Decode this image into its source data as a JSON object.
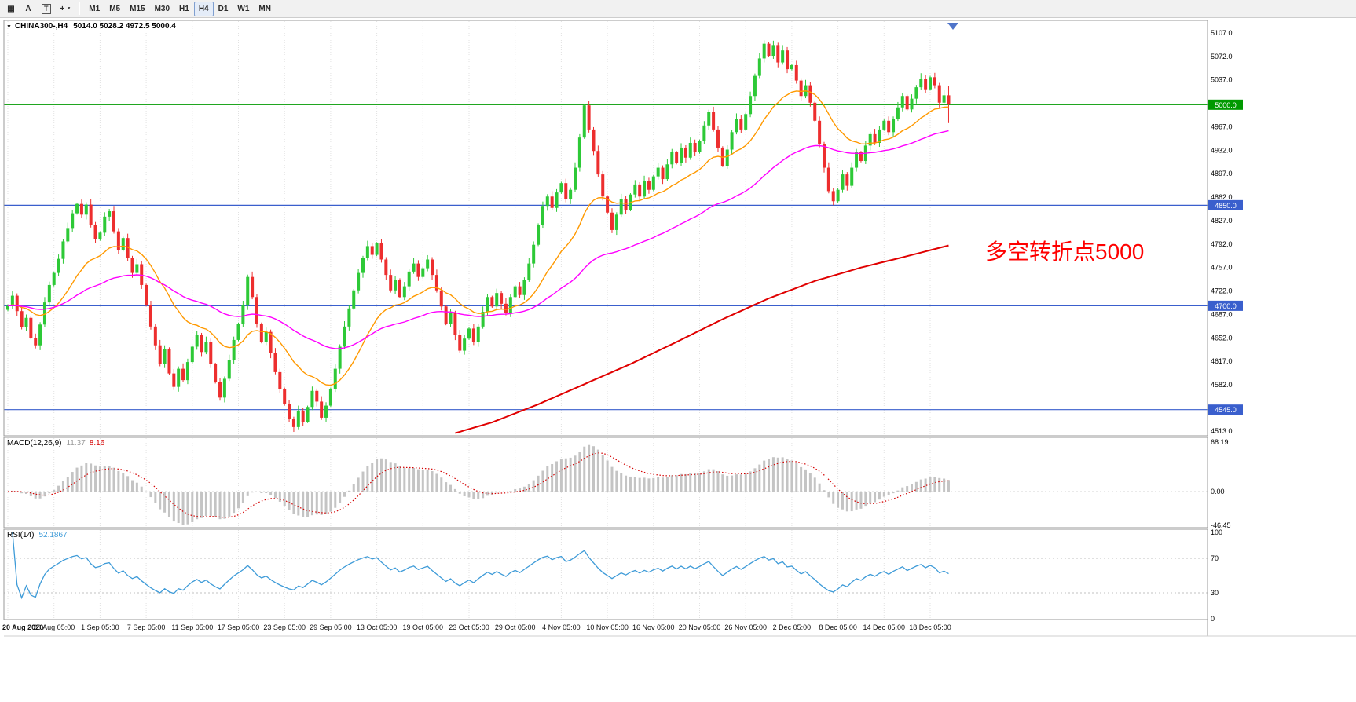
{
  "toolbar": {
    "tools": [
      {
        "name": "chart-grid-icon",
        "glyph": "▦"
      },
      {
        "name": "text-label-icon",
        "glyph": "A"
      },
      {
        "name": "text-box-icon",
        "glyph": "T",
        "boxed": true
      },
      {
        "name": "crosshair-tool-icon",
        "glyph": "+",
        "caret": "▼"
      }
    ],
    "timeframes": [
      {
        "label": "M1",
        "active": false
      },
      {
        "label": "M5",
        "active": false
      },
      {
        "label": "M15",
        "active": false
      },
      {
        "label": "M30",
        "active": false
      },
      {
        "label": "H1",
        "active": false
      },
      {
        "label": "H4",
        "active": true
      },
      {
        "label": "D1",
        "active": false
      },
      {
        "label": "W1",
        "active": false
      },
      {
        "label": "MN",
        "active": false
      }
    ]
  },
  "chart_data": {
    "type": "candlestick",
    "title": "CHINA300-,H4",
    "ohlc_label": "5014.0 5028.2 4972.5 5000.4",
    "last_candle": {
      "open": 5014.0,
      "high": 5028.2,
      "low": 4972.5,
      "close": 5000.4
    },
    "up_color": "#2dc937",
    "down_color": "#ed2e2e",
    "price_axis": {
      "min": 4513.0,
      "max": 5107.0,
      "ticks": [
        5107.0,
        5072.0,
        5037.0,
        4967.0,
        4932.0,
        4897.0,
        4862.0,
        4827.0,
        4792.0,
        4757.0,
        4722.0,
        4687.0,
        4652.0,
        4617.0,
        4582.0,
        4513.0
      ]
    },
    "hlines": [
      {
        "price": 5000.0,
        "color": "#009900",
        "tag": "5000.0"
      },
      {
        "price": 4850.0,
        "color": "#3a5fcd",
        "tag": "4850.0"
      },
      {
        "price": 4700.0,
        "color": "#3a5fcd",
        "tag": "4700.0"
      },
      {
        "price": 4545.0,
        "color": "#3a5fcd",
        "tag": "4545.0"
      }
    ],
    "x_labels": [
      "20 Aug 2020",
      "26 Aug 05:00",
      "1 Sep 05:00",
      "7 Sep 05:00",
      "11 Sep 05:00",
      "17 Sep 05:00",
      "23 Sep 05:00",
      "29 Sep 05:00",
      "13 Oct 05:00",
      "19 Oct 05:00",
      "23 Oct 05:00",
      "29 Oct 05:00",
      "4 Nov 05:00",
      "10 Nov 05:00",
      "16 Nov 05:00",
      "20 Nov 05:00",
      "26 Nov 05:00",
      "2 Dec 05:00",
      "8 Dec 05:00",
      "14 Dec 05:00",
      "18 Dec 05:00"
    ],
    "candles_per_label": 10,
    "closes": [
      4700,
      4715,
      4692,
      4668,
      4682,
      4652,
      4641,
      4672,
      4705,
      4731,
      4749,
      4770,
      4796,
      4816,
      4838,
      4852,
      4836,
      4851,
      4820,
      4799,
      4809,
      4833,
      4841,
      4811,
      4783,
      4801,
      4771,
      4749,
      4762,
      4731,
      4701,
      4669,
      4641,
      4613,
      4636,
      4599,
      4579,
      4606,
      4589,
      4616,
      4639,
      4656,
      4631,
      4646,
      4613,
      4586,
      4563,
      4591,
      4619,
      4649,
      4673,
      4701,
      4743,
      4713,
      4673,
      4646,
      4661,
      4629,
      4601,
      4576,
      4553,
      4531,
      4519,
      4543,
      4527,
      4549,
      4573,
      4557,
      4533,
      4551,
      4576,
      4606,
      4639,
      4669,
      4696,
      4723,
      4749,
      4771,
      4789,
      4776,
      4793,
      4769,
      4746,
      4723,
      4739,
      4713,
      4729,
      4751,
      4763,
      4743,
      4756,
      4769,
      4746,
      4723,
      4699,
      4673,
      4689,
      4656,
      4633,
      4651,
      4666,
      4646,
      4669,
      4691,
      4713,
      4699,
      4719,
      4703,
      4689,
      4713,
      4729,
      4716,
      4739,
      4763,
      4791,
      4821,
      4849,
      4863,
      4846,
      4869,
      4883,
      4859,
      4873,
      4906,
      4951,
      4999,
      4963,
      4931,
      4896,
      4863,
      4839,
      4813,
      4836,
      4859,
      4843,
      4866,
      4881,
      4863,
      4886,
      4873,
      4893,
      4906,
      4889,
      4911,
      4929,
      4913,
      4936,
      4921,
      4943,
      4929,
      4946,
      4969,
      4989,
      4963,
      4936,
      4909,
      4933,
      4959,
      4979,
      4963,
      4986,
      5013,
      5043,
      5069,
      5091,
      5073,
      5089,
      5063,
      5081,
      5053,
      5059,
      5036,
      5013,
      5029,
      5003,
      4976,
      4941,
      4906,
      4871,
      4856,
      4873,
      4896,
      4879,
      4906,
      4929,
      4916,
      4939,
      4956,
      4943,
      4963,
      4976,
      4959,
      4979,
      4996,
      5013,
      4993,
      5009,
      5026,
      5039,
      5023,
      5041,
      5029,
      5003,
      5014,
      5000.4
    ],
    "moving_averages": [
      {
        "name": "ma-fast",
        "type": "ema",
        "period": 20,
        "color": "#ff9900"
      },
      {
        "name": "ma-medium",
        "type": "ema",
        "period": 60,
        "color": "#ff00ff"
      },
      {
        "name": "ma-slow",
        "type": "anchors",
        "color": "#e00000",
        "anchors": [
          [
            97,
            4510
          ],
          [
            105,
            4526
          ],
          [
            115,
            4553
          ],
          [
            125,
            4583
          ],
          [
            135,
            4613
          ],
          [
            145,
            4646
          ],
          [
            155,
            4680
          ],
          [
            165,
            4711
          ],
          [
            175,
            4737
          ],
          [
            185,
            4757
          ],
          [
            195,
            4774
          ],
          [
            204,
            4790
          ]
        ]
      }
    ],
    "annotation": {
      "text": "多空转折点5000",
      "color": "#ff0000"
    },
    "macd": {
      "name": "MACD(12,26,9)",
      "value_hist": "11.37",
      "value_signal": "8.16",
      "fast": 12,
      "slow": 26,
      "signal": 9,
      "axis_ticks": [
        68.19,
        0.0,
        -46.45
      ],
      "hist_color": "#c4c4c4",
      "signal_color": "#d40000"
    },
    "rsi": {
      "name": "RSI(14)",
      "value_text": "52.1867",
      "period": 14,
      "axis_ticks": [
        100,
        70,
        30,
        0
      ],
      "levels": [
        70,
        30
      ],
      "color": "#3e9bd8"
    }
  }
}
